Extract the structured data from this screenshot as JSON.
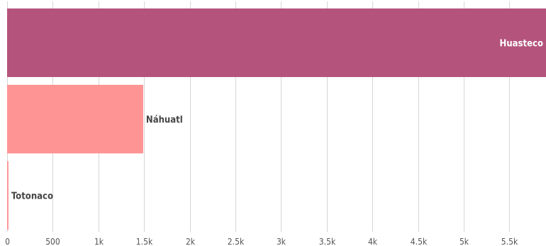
{
  "chart_data": {
    "type": "bar",
    "orientation": "horizontal",
    "categories": [
      "Huasteco",
      "Náhuatl",
      "Totonaco"
    ],
    "values": [
      5900,
      1490,
      15
    ],
    "colors": [
      "#b4547c",
      "#ff9494",
      "#ff9494"
    ],
    "label_colors": [
      "#ffffff",
      "#444444",
      "#444444"
    ],
    "xlim": [
      0,
      5900
    ],
    "xticks": [
      0,
      500,
      1000,
      1500,
      2000,
      2500,
      3000,
      3500,
      4000,
      4500,
      5000,
      5500
    ],
    "xtick_labels": [
      "0",
      "500",
      "1k",
      "1.5k",
      "2k",
      "2.5k",
      "3k",
      "3.5k",
      "4k",
      "4.5k",
      "5k",
      "5.5k"
    ],
    "grid": true,
    "title": "",
    "xlabel": "",
    "ylabel": ""
  }
}
